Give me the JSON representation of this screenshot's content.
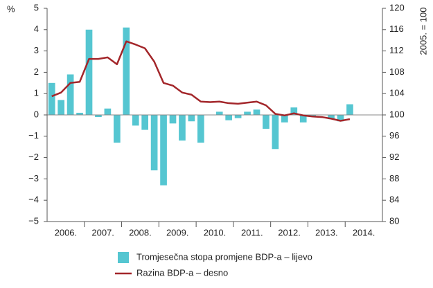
{
  "chart_data": {
    "type": "bar_line",
    "y_axis_label": "%",
    "y2_axis_label": "2005. = 100",
    "x_labels": [
      "2006.",
      "2007.",
      "2008.",
      "2009.",
      "2010.",
      "2011.",
      "2012.",
      "2013.",
      "2014."
    ],
    "series": [
      {
        "name": "Tromjesečna stopa promjene BDP-a – lijevo",
        "type": "bar",
        "color": "#55c6d1",
        "axis": "y",
        "values": [
          1.5,
          0.7,
          1.9,
          0.1,
          4.0,
          -0.1,
          0.3,
          -1.3,
          4.1,
          -0.5,
          -0.7,
          -2.6,
          -3.3,
          -0.4,
          -1.2,
          -0.3,
          -1.3,
          0.0,
          0.15,
          -0.25,
          -0.15,
          0.15,
          0.25,
          -0.65,
          -1.6,
          -0.35,
          0.35,
          -0.35,
          -0.05,
          0.0,
          -0.2,
          -0.3,
          0.5
        ]
      },
      {
        "name": "Razina BDP-a – desno",
        "type": "line",
        "color": "#a3262a",
        "axis": "y2",
        "values": [
          103.5,
          104.2,
          106.0,
          106.2,
          110.5,
          110.5,
          110.8,
          109.5,
          113.8,
          113.2,
          112.5,
          110.0,
          106.0,
          105.5,
          104.2,
          103.8,
          102.5,
          102.4,
          102.5,
          102.2,
          102.1,
          102.3,
          102.5,
          101.8,
          100.2,
          99.9,
          100.3,
          99.9,
          99.7,
          99.6,
          99.3,
          98.9,
          99.2
        ]
      }
    ],
    "ylim": [
      -5,
      5
    ],
    "yticks": [
      {
        "value": -5,
        "label": "−5"
      },
      {
        "value": -4,
        "label": "−4"
      },
      {
        "value": -3,
        "label": "−3"
      },
      {
        "value": -2,
        "label": "−2"
      },
      {
        "value": -1,
        "label": "−1"
      },
      0,
      1,
      2,
      3,
      4,
      5
    ],
    "y2lim": [
      80,
      120
    ],
    "y2ticks": [
      80,
      84,
      88,
      92,
      96,
      100,
      104,
      108,
      112,
      116,
      120
    ]
  }
}
